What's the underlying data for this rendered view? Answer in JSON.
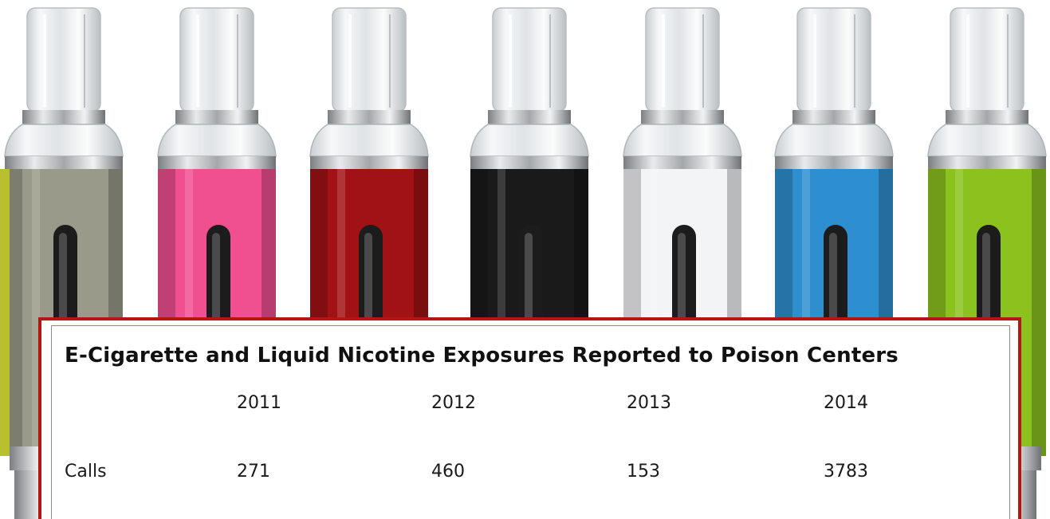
{
  "chart_data": {
    "type": "table",
    "title": "E-Cigarette and Liquid Nicotine Exposures Reported to Poison Centers",
    "columns": [
      "2011",
      "2012",
      "2013",
      "2014"
    ],
    "rows": [
      {
        "label": "Calls",
        "values": [
          "271",
          "460",
          "153",
          "3783"
        ]
      }
    ]
  },
  "photo": {
    "subject": "e-cigarette clearomizers",
    "body_colors": [
      "#9a9a8a",
      "#f0508f",
      "#a11214",
      "#1a1a1a",
      "#f2f4f6",
      "#2e8fd0",
      "#8cc21e"
    ],
    "accent_colors": [
      "#b8c030",
      null,
      null,
      null,
      null,
      null,
      null
    ]
  },
  "frame": {
    "border_color": "#b81414"
  }
}
